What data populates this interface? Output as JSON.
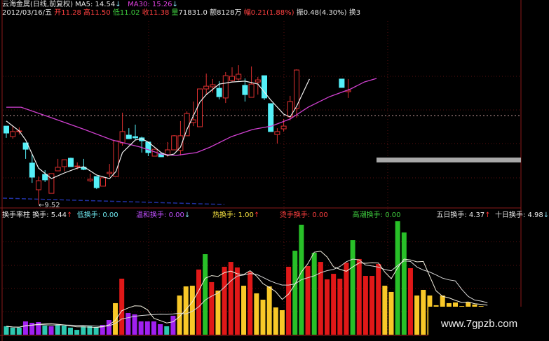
{
  "header": {
    "stock_name": "云海金属(日线,前复权)",
    "ma5_label": "MA5: 14.54",
    "ma30_label": "MA30: 15.26",
    "date": "2012/03/16/五",
    "open_label": "开",
    "open": "11.28",
    "high_label": "高",
    "high": "11.50",
    "low_label": "低",
    "low": "11.02",
    "close_label": "收",
    "close": "11.38",
    "volume_label": "量",
    "volume": "71831.0",
    "amount_label": "额",
    "amount": "8128万",
    "change_label": "幅",
    "change": "0.21(1.88%)",
    "amplitude_label": "振",
    "amplitude": "0.48(4.30%)",
    "turnover_label": "换3"
  },
  "main_chart": {
    "low_marker": "9.52",
    "reference_price": 13.75,
    "colors": {
      "up": "#e03030",
      "down": "#54f0f8",
      "ma5": "#f0f0f0",
      "ma30": "#d040d0",
      "grid": "#5a1010"
    },
    "candles": [
      [
        13.25,
        13.25,
        12.69,
        12.92
      ],
      [
        12.75,
        13.25,
        12.65,
        12.99
      ],
      [
        13.02,
        13.19,
        12.85,
        13.02
      ],
      [
        12.45,
        12.45,
        11.69,
        12.15
      ],
      [
        11.49,
        11.92,
        10.55,
        10.82
      ],
      [
        10.22,
        10.85,
        9.52,
        10.65
      ],
      [
        10.95,
        11.15,
        10.59,
        10.69
      ],
      [
        10.05,
        10.99,
        10.05,
        10.99
      ],
      [
        11.12,
        11.69,
        11.12,
        11.29
      ],
      [
        11.32,
        11.65,
        11.09,
        11.65
      ],
      [
        11.72,
        11.75,
        11.32,
        11.32
      ],
      [
        11.35,
        11.52,
        11.19,
        11.35
      ],
      [
        11.29,
        11.69,
        11.15,
        11.19
      ],
      [
        10.65,
        10.99,
        10.59,
        10.72
      ],
      [
        10.85,
        10.85,
        10.25,
        10.32
      ],
      [
        10.39,
        10.79,
        10.39,
        10.79
      ],
      [
        10.99,
        11.45,
        10.82,
        11.05
      ],
      [
        10.85,
        12.55,
        10.85,
        12.55
      ],
      [
        12.45,
        13.89,
        12.32,
        12.99
      ],
      [
        12.82,
        13.15,
        12.65,
        12.65
      ],
      [
        12.75,
        13.32,
        12.59,
        12.69
      ],
      [
        12.69,
        12.75,
        11.99,
        12.55
      ],
      [
        12.49,
        12.49,
        11.82,
        11.99
      ],
      [
        11.82,
        12.15,
        11.82,
        12.15
      ],
      [
        11.95,
        11.95,
        11.79,
        11.79
      ],
      [
        11.89,
        12.49,
        11.79,
        12.12
      ],
      [
        12.12,
        12.82,
        12.12,
        12.79
      ],
      [
        12.09,
        13.49,
        11.85,
        12.79
      ],
      [
        12.79,
        13.95,
        12.79,
        13.85
      ],
      [
        13.42,
        14.42,
        13.25,
        13.55
      ],
      [
        13.22,
        15.02,
        13.22,
        15.02
      ],
      [
        15.02,
        15.75,
        14.75,
        15.15
      ],
      [
        15.12,
        15.49,
        14.85,
        15.22
      ],
      [
        15.05,
        15.39,
        14.52,
        14.65
      ],
      [
        14.59,
        15.82,
        14.35,
        15.65
      ],
      [
        15.42,
        16.05,
        15.35,
        15.62
      ],
      [
        15.49,
        16.15,
        15.42,
        15.72
      ],
      [
        15.19,
        15.52,
        14.42,
        14.75
      ],
      [
        14.62,
        16.09,
        14.62,
        15.25
      ],
      [
        15.35,
        15.59,
        14.75,
        15.45
      ],
      [
        15.65,
        15.65,
        14.49,
        14.59
      ],
      [
        14.32,
        14.32,
        12.99,
        12.99
      ],
      [
        12.85,
        13.15,
        12.42,
        12.99
      ],
      [
        13.12,
        13.59,
        12.99,
        13.25
      ],
      [
        13.69,
        14.69,
        13.52,
        14.42
      ],
      [
        14.09,
        15.95,
        13.65,
        15.92
      ],
      null,
      null,
      null,
      null,
      null,
      null,
      [
        15.49,
        15.49,
        15.09,
        15.09
      ],
      [
        14.89,
        15.49,
        14.59,
        14.95
      ]
    ],
    "ma5": [
      [
        0,
        13.49
      ],
      [
        2,
        13.02
      ],
      [
        3,
        12.59
      ],
      [
        5,
        11.25
      ],
      [
        7,
        10.75
      ],
      [
        9,
        11.02
      ],
      [
        11,
        11.25
      ],
      [
        12,
        11.32
      ],
      [
        14,
        10.92
      ],
      [
        16,
        10.75
      ],
      [
        17,
        11.09
      ],
      [
        18,
        11.99
      ],
      [
        20,
        12.59
      ],
      [
        21,
        12.65
      ],
      [
        22,
        12.49
      ],
      [
        24,
        11.99
      ],
      [
        25,
        11.85
      ],
      [
        26,
        11.92
      ],
      [
        27,
        12.25
      ],
      [
        28,
        13.09
      ],
      [
        30,
        14.39
      ],
      [
        31,
        14.75
      ],
      [
        33,
        15.25
      ],
      [
        35,
        15.35
      ],
      [
        37,
        15.39
      ],
      [
        39,
        15.25
      ],
      [
        41,
        14.49
      ],
      [
        43,
        13.82
      ],
      [
        44,
        13.69
      ],
      [
        45,
        14.19
      ],
      [
        47,
        15.49
      ]
    ],
    "ma30": [
      [
        0,
        14.15
      ],
      [
        2.3,
        14.15
      ],
      [
        6.6,
        13.69
      ],
      [
        12.1,
        13.09
      ],
      [
        16.4,
        12.59
      ],
      [
        20.8,
        12.25
      ],
      [
        24,
        11.92
      ],
      [
        26.2,
        11.85
      ],
      [
        29.5,
        11.99
      ],
      [
        31.6,
        12.25
      ],
      [
        34.9,
        12.75
      ],
      [
        38.2,
        13.09
      ],
      [
        41.1,
        13.25
      ],
      [
        44,
        13.59
      ],
      [
        46.8,
        14.15
      ],
      [
        50.1,
        14.65
      ],
      [
        53.4,
        15.02
      ],
      [
        55.5,
        15.35
      ],
      [
        57.4,
        15.52
      ]
    ]
  },
  "indicator": {
    "name": "换手率柱",
    "turnover": "换手: 5.44",
    "low": "低换手: 0.00",
    "mild": "温和换手: 0.00",
    "hot": "热换手: 1.00",
    "scorching": "烫手换手: 0.00",
    "climax": "高潮换手: 0.00",
    "ma5": "五日换手: 4.37",
    "ma10": "十日换手: 4.98",
    "category_colors": {
      "t": "#2ec8b0",
      "p": "#a020f0",
      "y": "#f8c828",
      "r": "#e01818",
      "g": "#28c028"
    },
    "values": [
      0.73,
      0.61,
      0.61,
      1.15,
      1.03,
      1.09,
      0.79,
      0.73,
      0.85,
      0.79,
      0.61,
      0.42,
      0.73,
      0.73,
      0.67,
      0.85,
      1.27,
      2.73,
      4.85,
      1.88,
      1.76,
      1.15,
      1.15,
      1.15,
      0.91,
      0.73,
      1.64,
      3.39,
      4.18,
      4.24,
      5.64,
      6.97,
      4.55,
      3.82,
      5.88,
      6.3,
      5.82,
      4.24,
      5.45,
      3.58,
      3.03,
      4.18,
      2.36,
      2.12,
      5.88,
      7.27,
      9.52,
      5.94,
      7.09,
      6.3,
      4.79,
      5.27,
      4.85,
      6.24,
      8.18,
      6.55,
      5.09,
      5.09,
      6.12,
      4.24,
      3.7,
      9.82,
      8.85,
      5.76,
      3.39,
      3.88,
      3.39,
      2.55,
      3.39,
      2.73,
      2.79,
      2.48,
      2.79,
      2.61,
      2.48,
      2.42
    ],
    "categories": "tttppptptttttttpp"
  },
  "watermark": "www.7gpzb.com"
}
